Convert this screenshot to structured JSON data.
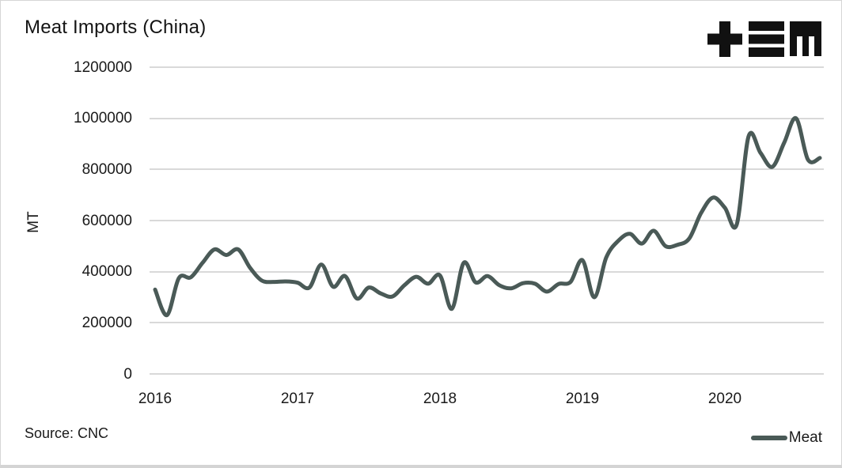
{
  "title": "Meat Imports (China)",
  "source": "Source: CNC",
  "brand_logo": "plus-triplebar-m-monogram",
  "colors": {
    "line": "#4a5a57",
    "grid": "#d9d9d9",
    "text": "#1a1a1a",
    "logo": "#111111",
    "background": "#ffffff",
    "border": "#d4d4d4"
  },
  "legend": [
    {
      "label": "Meat",
      "color": "#4a5a57"
    }
  ],
  "chart_data": {
    "type": "line",
    "title": "Meat Imports (China)",
    "xlabel": "",
    "ylabel": "MT",
    "ylim": [
      0,
      1200000
    ],
    "y_ticks": [
      0,
      200000,
      400000,
      600000,
      800000,
      1000000,
      1200000
    ],
    "x_ticks": [
      "2016",
      "2017",
      "2018",
      "2019",
      "2020"
    ],
    "grid": "horizontal",
    "legend_position": "bottom-right",
    "x": [
      "2016-01",
      "2016-02",
      "2016-03",
      "2016-04",
      "2016-05",
      "2016-06",
      "2016-07",
      "2016-08",
      "2016-09",
      "2016-10",
      "2016-11",
      "2016-12",
      "2017-01",
      "2017-02",
      "2017-03",
      "2017-04",
      "2017-05",
      "2017-06",
      "2017-07",
      "2017-08",
      "2017-09",
      "2017-10",
      "2017-11",
      "2017-12",
      "2018-01",
      "2018-02",
      "2018-03",
      "2018-04",
      "2018-05",
      "2018-06",
      "2018-07",
      "2018-08",
      "2018-09",
      "2018-10",
      "2018-11",
      "2018-12",
      "2019-01",
      "2019-02",
      "2019-03",
      "2019-04",
      "2019-05",
      "2019-06",
      "2019-07",
      "2019-08",
      "2019-09",
      "2019-10",
      "2019-11",
      "2019-12",
      "2020-01",
      "2020-02",
      "2020-03",
      "2020-04",
      "2020-05",
      "2020-06",
      "2020-07",
      "2020-08",
      "2020-09"
    ],
    "series": [
      {
        "name": "Meat",
        "values": [
          330000,
          230000,
          375000,
          378000,
          435000,
          487000,
          465000,
          487000,
          415000,
          365000,
          360000,
          362000,
          357000,
          338000,
          428000,
          341000,
          383000,
          295000,
          338000,
          315000,
          303000,
          347000,
          380000,
          353000,
          385000,
          255000,
          435000,
          358000,
          383000,
          347000,
          335000,
          355000,
          353000,
          322000,
          352000,
          360000,
          445000,
          300000,
          455000,
          520000,
          548000,
          510000,
          560000,
          500000,
          505000,
          530000,
          630000,
          690000,
          650000,
          585000,
          930000,
          865000,
          810000,
          905000,
          1000000,
          838000,
          845000
        ]
      }
    ]
  }
}
